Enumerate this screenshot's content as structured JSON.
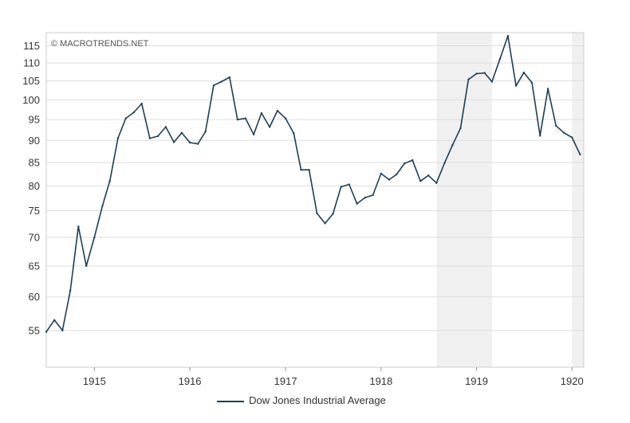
{
  "watermark": "© MACROTRENDS.NET",
  "legend": {
    "label": "Dow Jones Industrial Average"
  },
  "colors": {
    "line": "#1d3f57",
    "recession": "#f0f0f0",
    "grid": "#dddddd",
    "frame": "#cccccc"
  },
  "chart_data": {
    "type": "line",
    "title": "",
    "xlabel": "",
    "ylabel": "",
    "y_scale": "log",
    "xlim": [
      "1914-07-01",
      "1920-02-15"
    ],
    "ylim": [
      50,
      119
    ],
    "grid": true,
    "legend_position": "bottom-center",
    "x_ticks": [
      "1915",
      "1916",
      "1917",
      "1918",
      "1919",
      "1920"
    ],
    "y_ticks": [
      55,
      60,
      65,
      70,
      75,
      80,
      85,
      90,
      95,
      100,
      105,
      110,
      115
    ],
    "recession_shading": [
      [
        "1918-08-01",
        "1919-03-01"
      ],
      [
        "1920-01-01",
        "1920-02-15"
      ]
    ],
    "series": [
      {
        "name": "Dow Jones Industrial Average",
        "x": [
          "1914-07-01",
          "1914-08-01",
          "1914-09-01",
          "1914-10-01",
          "1914-11-01",
          "1914-12-01",
          "1915-01-01",
          "1915-02-01",
          "1915-03-01",
          "1915-04-01",
          "1915-05-01",
          "1915-06-01",
          "1915-07-01",
          "1915-08-01",
          "1915-09-01",
          "1915-10-01",
          "1915-11-01",
          "1915-12-01",
          "1916-01-01",
          "1916-02-01",
          "1916-03-01",
          "1916-04-01",
          "1916-05-01",
          "1916-06-01",
          "1916-07-01",
          "1916-08-01",
          "1916-09-01",
          "1916-10-01",
          "1916-11-01",
          "1916-12-01",
          "1917-01-01",
          "1917-02-01",
          "1917-03-01",
          "1917-04-01",
          "1917-05-01",
          "1917-06-01",
          "1917-07-01",
          "1917-08-01",
          "1917-09-01",
          "1917-10-01",
          "1917-11-01",
          "1917-12-01",
          "1918-01-01",
          "1918-02-01",
          "1918-03-01",
          "1918-04-01",
          "1918-05-01",
          "1918-06-01",
          "1918-07-01",
          "1918-08-01",
          "1918-09-01",
          "1918-10-01",
          "1918-11-01",
          "1918-12-01",
          "1919-01-01",
          "1919-02-01",
          "1919-03-01",
          "1919-04-01",
          "1919-05-01",
          "1919-06-01",
          "1919-07-01",
          "1919-08-01",
          "1919-09-01",
          "1919-10-01",
          "1919-11-01",
          "1919-12-01",
          "1920-01-01",
          "1920-02-01"
        ],
        "values": [
          54.8,
          56.5,
          55.0,
          61.0,
          72.0,
          65.0,
          70.0,
          76.0,
          81.0,
          90.5,
          95.3,
          96.8,
          99.0,
          90.5,
          91.0,
          93.2,
          89.6,
          91.8,
          89.5,
          89.2,
          92.1,
          103.8,
          104.8,
          106.0,
          95.0,
          95.3,
          91.4,
          96.6,
          93.2,
          97.2,
          95.3,
          91.7,
          83.4,
          83.4,
          74.5,
          72.6,
          74.4,
          79.8,
          80.3,
          76.4,
          77.6,
          78.1,
          82.6,
          81.3,
          82.4,
          84.8,
          85.5,
          81.0,
          82.2,
          80.6,
          84.9,
          88.9,
          92.9,
          105.4,
          107.0,
          107.2,
          104.8,
          111.2,
          118.0,
          103.7,
          107.3,
          104.5,
          91.1,
          102.9,
          93.5,
          91.8,
          90.7,
          86.8
        ]
      }
    ]
  }
}
